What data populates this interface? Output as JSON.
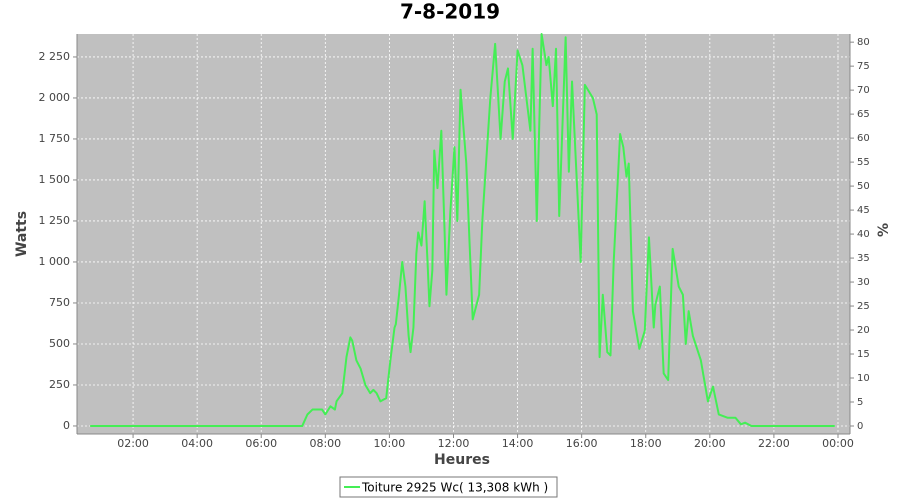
{
  "chart_data": {
    "type": "line",
    "title": "7-8-2019",
    "x_label": "Heures",
    "y_label": "Watts",
    "y2_label": "%",
    "xlim": [
      0.25,
      24.375
    ],
    "xticks": [
      {
        "value": 2,
        "label": "02:00"
      },
      {
        "value": 4,
        "label": "04:00"
      },
      {
        "value": 6,
        "label": "06:00"
      },
      {
        "value": 8,
        "label": "08:00"
      },
      {
        "value": 10,
        "label": "10:00"
      },
      {
        "value": 12,
        "label": "12:00"
      },
      {
        "value": 14,
        "label": "14:00"
      },
      {
        "value": 16,
        "label": "16:00"
      },
      {
        "value": 18,
        "label": "18:00"
      },
      {
        "value": 20,
        "label": "20:00"
      },
      {
        "value": 22,
        "label": "22:00"
      },
      {
        "value": 24,
        "label": "00:00"
      }
    ],
    "ylim": [
      -49,
      2390
    ],
    "yticks": [
      0,
      250,
      500,
      750,
      {
        "value": 1000,
        "label": "1 000"
      },
      {
        "value": 1250,
        "label": "1 250"
      },
      {
        "value": 1500,
        "label": "1 500"
      },
      {
        "value": 1750,
        "label": "1 750"
      },
      {
        "value": 2000,
        "label": "2 000"
      },
      {
        "value": 2250,
        "label": "2 250"
      }
    ],
    "y2lim": [
      -1.67,
      81.7
    ],
    "y2ticks": [
      0,
      5,
      10,
      15,
      20,
      25,
      30,
      35,
      40,
      45,
      50,
      55,
      60,
      65,
      70,
      75,
      80
    ],
    "grid": true,
    "legend": "bottom",
    "x": [
      0.66,
      7.28,
      7.44,
      7.6,
      7.9,
      8.0,
      8.16,
      8.3,
      8.35,
      8.53,
      8.66,
      8.78,
      8.84,
      8.97,
      9.1,
      9.25,
      9.4,
      9.5,
      9.6,
      9.72,
      9.9,
      10.03,
      10.16,
      10.2,
      10.3,
      10.4,
      10.5,
      10.6,
      10.66,
      10.75,
      10.84,
      10.9,
      11.0,
      11.1,
      11.19,
      11.25,
      11.34,
      11.4,
      11.5,
      11.62,
      11.72,
      11.78,
      11.9,
      12.03,
      12.12,
      12.22,
      12.4,
      12.6,
      12.8,
      12.9,
      13.15,
      13.3,
      13.47,
      13.6,
      13.7,
      13.85,
      14.0,
      14.15,
      14.4,
      14.47,
      14.6,
      14.75,
      14.9,
      14.97,
      15.1,
      15.2,
      15.3,
      15.5,
      15.6,
      15.7,
      15.97,
      16.1,
      16.35,
      16.47,
      16.56,
      16.66,
      16.8,
      16.9,
      17.0,
      17.2,
      17.3,
      17.4,
      17.47,
      17.6,
      17.8,
      17.97,
      18.1,
      18.25,
      18.3,
      18.44,
      18.56,
      18.7,
      18.84,
      19.03,
      19.16,
      19.25,
      19.34,
      19.47,
      19.72,
      19.94,
      20.1,
      20.28,
      20.56,
      20.8,
      20.97,
      21.1,
      21.3,
      23.9
    ],
    "series": [
      {
        "name": "Toiture 2925 Wc( 13,308 kWh )",
        "color": "#44ee55",
        "values": [
          0,
          0,
          70,
          100,
          100,
          70,
          120,
          100,
          150,
          200,
          420,
          540,
          520,
          400,
          350,
          250,
          200,
          220,
          200,
          150,
          170,
          400,
          600,
          620,
          800,
          1000,
          850,
          550,
          450,
          600,
          1050,
          1180,
          1100,
          1370,
          1000,
          730,
          950,
          1680,
          1450,
          1800,
          1200,
          800,
          1300,
          1700,
          1250,
          2050,
          1600,
          650,
          800,
          1250,
          2000,
          2330,
          1750,
          2100,
          2180,
          1750,
          2290,
          2200,
          1800,
          2300,
          1250,
          2390,
          2200,
          2250,
          1950,
          2300,
          1280,
          2370,
          1550,
          2100,
          1000,
          2080,
          2000,
          1900,
          420,
          800,
          450,
          430,
          1000,
          1780,
          1700,
          1520,
          1600,
          700,
          470,
          580,
          1150,
          600,
          740,
          850,
          320,
          280,
          1080,
          850,
          800,
          500,
          700,
          550,
          400,
          150,
          240,
          70,
          50,
          50,
          10,
          20,
          0,
          0
        ]
      }
    ]
  }
}
